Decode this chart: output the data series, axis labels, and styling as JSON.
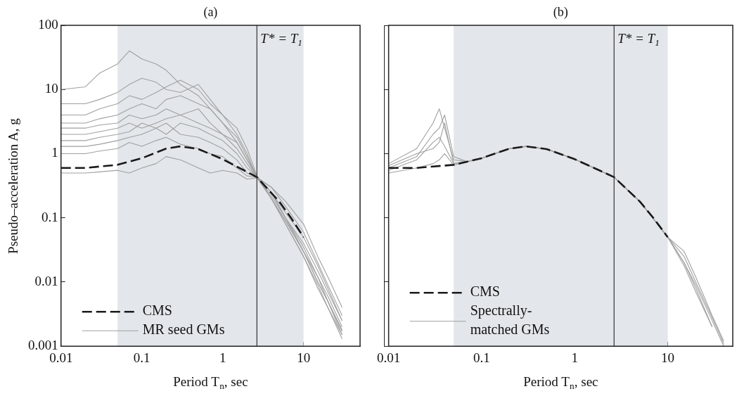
{
  "chart_data": [
    {
      "type": "line",
      "title": "(a)",
      "xlabel": "Period T$_{n}$, sec",
      "ylabel": "Pseudo–acceleration A, g",
      "log": "xy",
      "grid": false,
      "legend": "bottom left",
      "xlim": [
        0.01,
        50
      ],
      "xticks": [
        0.01,
        0.1,
        1,
        10
      ],
      "ylim": [
        0.001,
        100
      ],
      "yticks": [
        0.001,
        0.01,
        0.1,
        1,
        10,
        100
      ],
      "x": [
        0.01,
        0.02,
        0.03,
        0.05,
        0.07,
        0.1,
        0.15,
        0.2,
        0.3,
        0.5,
        0.7,
        1,
        1.5,
        2,
        2.65,
        4,
        6,
        10,
        15,
        20,
        30
      ],
      "bands": [
        {
          "axis": "x",
          "from": 0.05,
          "to": 10,
          "color": "#e3e7eb"
        }
      ],
      "ref_lines": [
        {
          "axis": "x",
          "value": 2.65,
          "label": "T* = T$_{1}$",
          "color": "#333333"
        }
      ],
      "series": [
        {
          "name": "CMS",
          "color": "#1a1a1a",
          "line_style": "dashed",
          "x": [
            0.01,
            0.02,
            0.05,
            0.1,
            0.2,
            0.3,
            0.5,
            1,
            2,
            2.65,
            5,
            7,
            10
          ],
          "values": [
            0.6,
            0.6,
            0.67,
            0.85,
            1.2,
            1.3,
            1.18,
            0.82,
            0.52,
            0.43,
            0.18,
            0.1,
            0.05
          ]
        },
        {
          "name": "MR seed GMs",
          "color": "#a0a0a0",
          "values": [
            10,
            11,
            18,
            25,
            40,
            30,
            25,
            20,
            12,
            8,
            5,
            3,
            1.5,
            0.8,
            0.45,
            0.2,
            0.08,
            0.025,
            0.009,
            0.004,
            0.0015
          ]
        },
        {
          "color": "#a0a0a0",
          "values": [
            6,
            6,
            7,
            9,
            12,
            15,
            13,
            10,
            9,
            12,
            7,
            4,
            2.5,
            1.2,
            0.45,
            0.25,
            0.1,
            0.03,
            0.01,
            0.005,
            0.0018
          ]
        },
        {
          "color": "#a0a0a0",
          "values": [
            4,
            4,
            5,
            6,
            8,
            7,
            9,
            11,
            14,
            10,
            6,
            4,
            2,
            1,
            0.42,
            0.2,
            0.09,
            0.03,
            0.012,
            0.006,
            0.002
          ]
        },
        {
          "color": "#a0a0a0",
          "values": [
            3,
            3,
            3.5,
            4,
            5,
            6,
            5,
            7,
            8,
            6,
            5,
            3,
            1.8,
            0.9,
            0.44,
            0.22,
            0.1,
            0.04,
            0.015,
            0.007,
            0.0025
          ]
        },
        {
          "color": "#a0a0a0",
          "values": [
            2.5,
            2.5,
            2.8,
            3,
            4,
            3.5,
            4,
            5,
            4,
            5,
            3,
            2,
            1.5,
            0.8,
            0.43,
            0.3,
            0.15,
            0.06,
            0.02,
            0.009,
            0.003
          ]
        },
        {
          "color": "#a0a0a0",
          "values": [
            2,
            2,
            2.2,
            2.5,
            3,
            2.5,
            3,
            3.5,
            4,
            3,
            2.5,
            2,
            1.2,
            0.7,
            0.42,
            0.25,
            0.12,
            0.05,
            0.018,
            0.008,
            0.0025
          ]
        },
        {
          "color": "#a0a0a0",
          "values": [
            1.6,
            1.6,
            1.8,
            2,
            2.2,
            3,
            2.5,
            2,
            3,
            2.5,
            2,
            1.6,
            1,
            0.6,
            0.43,
            0.2,
            0.08,
            0.025,
            0.008,
            0.004,
            0.0013
          ]
        },
        {
          "color": "#a0a0a0",
          "values": [
            1.3,
            1.3,
            1.4,
            1.6,
            1.8,
            2,
            2.5,
            3,
            2,
            1.8,
            1.5,
            1.2,
            0.8,
            0.5,
            0.44,
            0.25,
            0.1,
            0.035,
            0.012,
            0.005,
            0.0017
          ]
        },
        {
          "color": "#a0a0a0",
          "values": [
            1,
            1,
            1.1,
            1.2,
            1.5,
            1.3,
            1.6,
            1.8,
            1.4,
            1.2,
            1,
            0.9,
            0.6,
            0.45,
            0.43,
            0.2,
            0.09,
            0.03,
            0.01,
            0.005,
            0.0015
          ]
        },
        {
          "color": "#a0a0a0",
          "values": [
            0.5,
            0.5,
            0.52,
            0.55,
            0.5,
            0.6,
            0.7,
            0.9,
            0.8,
            0.6,
            0.5,
            0.55,
            0.5,
            0.4,
            0.42,
            0.3,
            0.18,
            0.08,
            0.025,
            0.012,
            0.004
          ]
        }
      ]
    },
    {
      "type": "line",
      "title": "(b)",
      "xlabel": "Period T$_{n}$, sec",
      "log": "xy",
      "grid": false,
      "legend": "bottom left",
      "tick_labels": "x",
      "xlim": [
        0.01,
        50
      ],
      "xticks": [
        0.01,
        0.1,
        1,
        10
      ],
      "ylim": [
        0.001,
        100
      ],
      "yticks": [
        0.001,
        0.01,
        0.1,
        1,
        10,
        100
      ],
      "x": [
        0.01,
        0.02,
        0.03,
        0.035,
        0.04,
        0.05,
        0.07,
        0.1,
        0.2,
        0.3,
        0.5,
        1,
        2,
        2.65,
        5,
        10,
        15,
        20,
        30,
        40
      ],
      "bands": [
        {
          "axis": "x",
          "from": 0.05,
          "to": 10,
          "color": "#e3e7eb"
        }
      ],
      "ref_lines": [
        {
          "axis": "x",
          "value": 2.65,
          "label": "T* = T$_{1}$",
          "color": "#333333"
        }
      ],
      "series": [
        {
          "name": "CMS",
          "color": "#1a1a1a",
          "line_style": "dashed",
          "x": [
            0.01,
            0.02,
            0.05,
            0.1,
            0.2,
            0.3,
            0.5,
            1,
            2,
            2.65,
            5,
            7,
            10
          ],
          "values": [
            0.6,
            0.6,
            0.67,
            0.85,
            1.2,
            1.3,
            1.18,
            0.82,
            0.52,
            0.43,
            0.18,
            0.1,
            0.05
          ]
        },
        {
          "name": "Spectrally-matched GMs",
          "color": "#a0a0a0",
          "values": [
            0.7,
            1.2,
            3,
            5,
            2.5,
            0.8,
            0.75,
            0.85,
            1.2,
            1.3,
            1.18,
            0.82,
            0.52,
            0.43,
            0.18,
            0.05,
            0.02,
            0.008,
            0.002,
            null
          ]
        },
        {
          "color": "#a0a0a0",
          "values": [
            0.6,
            0.9,
            2,
            2.5,
            4,
            0.9,
            0.75,
            0.85,
            1.2,
            1.3,
            1.18,
            0.82,
            0.52,
            0.43,
            0.18,
            0.05,
            0.03,
            0.012,
            0.003,
            0.0012
          ]
        },
        {
          "color": "#a0a0a0",
          "values": [
            0.55,
            0.8,
            1.5,
            1.8,
            1.3,
            0.7,
            0.75,
            0.85,
            1.2,
            1.3,
            1.18,
            0.82,
            0.52,
            0.43,
            0.18,
            0.05,
            0.018,
            0.007,
            0.002,
            null
          ]
        },
        {
          "color": "#a0a0a0",
          "values": [
            0.5,
            0.6,
            0.7,
            0.8,
            1,
            0.66,
            0.75,
            0.85,
            1.2,
            1.3,
            1.18,
            0.82,
            0.52,
            0.43,
            0.18,
            0.05,
            0.02,
            0.009,
            0.0025,
            0.001
          ]
        },
        {
          "color": "#a0a0a0",
          "values": [
            0.65,
            1,
            1.2,
            1.5,
            3,
            0.7,
            0.75,
            0.85,
            1.2,
            1.3,
            1.18,
            0.82,
            0.52,
            0.43,
            0.18,
            0.05,
            0.025,
            0.01,
            0.0028,
            0.0011
          ]
        }
      ]
    }
  ]
}
